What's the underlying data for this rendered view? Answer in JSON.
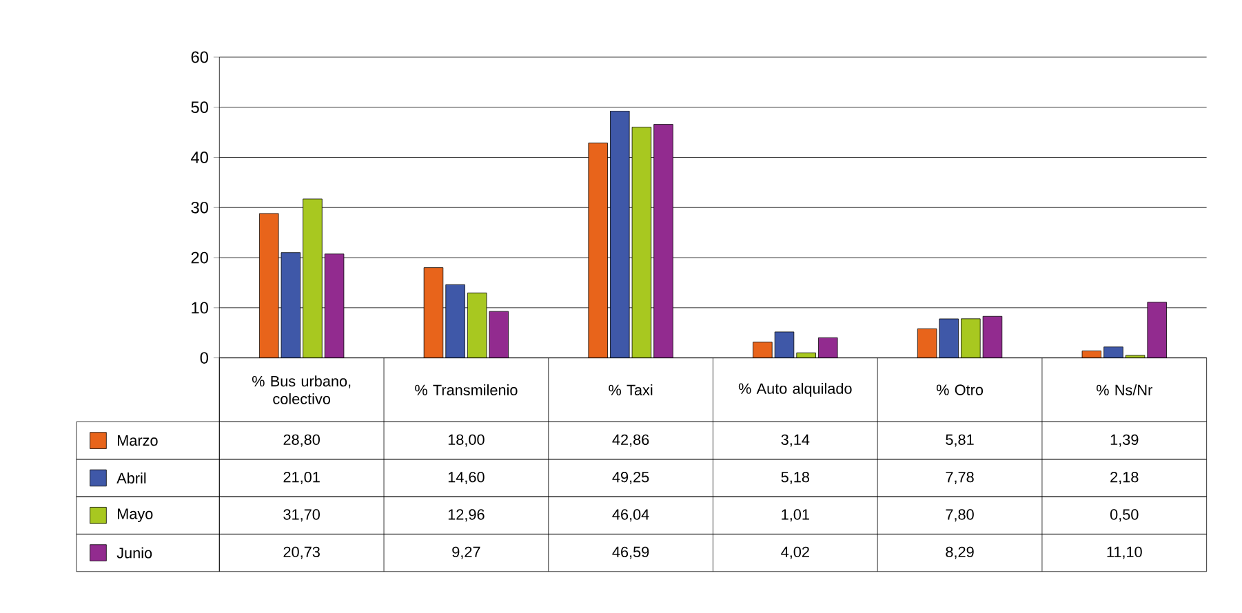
{
  "chart_data": {
    "type": "bar",
    "categories": [
      "% Bus urbano, colectivo",
      "% Transmilenio",
      "% Taxi",
      "% Auto alquilado",
      "% Otro",
      "% Ns/Nr"
    ],
    "series": [
      {
        "name": "Marzo",
        "color": "#e8641b",
        "values": [
          28.8,
          18.0,
          42.86,
          3.14,
          5.81,
          1.39
        ],
        "value_labels": [
          "28,80",
          "18,00",
          "42,86",
          "3,14",
          "5,81",
          "1,39"
        ]
      },
      {
        "name": "Abril",
        "color": "#3f58a8",
        "values": [
          21.01,
          14.6,
          49.25,
          5.18,
          7.78,
          2.18
        ],
        "value_labels": [
          "21,01",
          "14,60",
          "49,25",
          "5,18",
          "7,78",
          "2,18"
        ]
      },
      {
        "name": "Mayo",
        "color": "#a8c820",
        "values": [
          31.7,
          12.96,
          46.04,
          1.01,
          7.8,
          0.5
        ],
        "value_labels": [
          "31,70",
          "12,96",
          "46,04",
          "1,01",
          "7,80",
          "0,50"
        ]
      },
      {
        "name": "Junio",
        "color": "#922b8f",
        "values": [
          20.73,
          9.27,
          46.59,
          4.02,
          8.29,
          11.1
        ],
        "value_labels": [
          "20,73",
          "9,27",
          "46,59",
          "4,02",
          "8,29",
          "11,10"
        ]
      }
    ],
    "ylim": [
      0,
      60
    ],
    "yticks": [
      0,
      10,
      20,
      30,
      40,
      50,
      60
    ],
    "grid": "y",
    "legend": "bottom left"
  }
}
